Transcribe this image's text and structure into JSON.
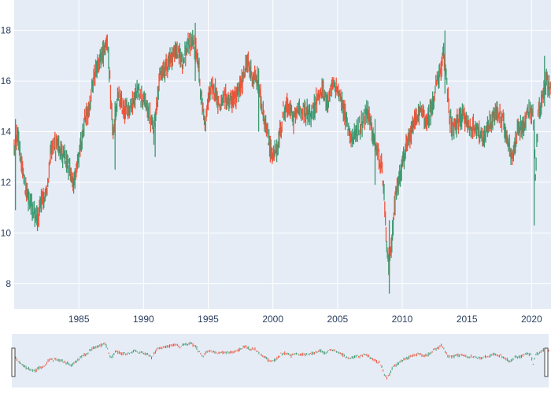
{
  "colors": {
    "background": "#ffffff",
    "plot_background": "#e5ecf6",
    "grid": "#ffffff",
    "axis_text": "#2a3f5f",
    "increasing": "#3d9970",
    "decreasing": "#ef553b",
    "slider_border": "#444444"
  },
  "chart_data": {
    "type": "candlestick",
    "xlabel": "",
    "ylabel": "",
    "x_ticks": [
      "1985",
      "1990",
      "1995",
      "2000",
      "2005",
      "2010",
      "2015",
      "2020"
    ],
    "y_ticks": [
      "8",
      "10",
      "12",
      "14",
      "16",
      "18"
    ],
    "xlim": [
      1980.0,
      2021.5
    ],
    "ylim": [
      7.0,
      19.2
    ],
    "grid": true,
    "legend": "none",
    "range_slider": true,
    "price_path": [
      {
        "x": 1980.0,
        "y": 13.3
      },
      {
        "x": 1980.3,
        "y": 14.0
      },
      {
        "x": 1980.6,
        "y": 12.5
      },
      {
        "x": 1981.0,
        "y": 11.5
      },
      {
        "x": 1981.4,
        "y": 11.0
      },
      {
        "x": 1981.8,
        "y": 10.5
      },
      {
        "x": 1982.1,
        "y": 11.2
      },
      {
        "x": 1982.5,
        "y": 11.5
      },
      {
        "x": 1982.8,
        "y": 13.2
      },
      {
        "x": 1983.3,
        "y": 13.5
      },
      {
        "x": 1983.8,
        "y": 13.0
      },
      {
        "x": 1984.3,
        "y": 12.5
      },
      {
        "x": 1984.6,
        "y": 11.9
      },
      {
        "x": 1985.0,
        "y": 13.0
      },
      {
        "x": 1985.4,
        "y": 14.2
      },
      {
        "x": 1985.8,
        "y": 15.0
      },
      {
        "x": 1986.2,
        "y": 16.2
      },
      {
        "x": 1986.6,
        "y": 16.8
      },
      {
        "x": 1987.0,
        "y": 17.3
      },
      {
        "x": 1987.2,
        "y": 17.7
      },
      {
        "x": 1987.5,
        "y": 14.9
      },
      {
        "x": 1987.7,
        "y": 13.8
      },
      {
        "x": 1988.0,
        "y": 15.4
      },
      {
        "x": 1988.5,
        "y": 14.8
      },
      {
        "x": 1989.0,
        "y": 15.0
      },
      {
        "x": 1989.5,
        "y": 15.6
      },
      {
        "x": 1990.0,
        "y": 15.3
      },
      {
        "x": 1990.5,
        "y": 14.6
      },
      {
        "x": 1990.8,
        "y": 14.0
      },
      {
        "x": 1991.2,
        "y": 16.0
      },
      {
        "x": 1991.7,
        "y": 16.6
      },
      {
        "x": 1992.2,
        "y": 17.0
      },
      {
        "x": 1992.6,
        "y": 17.2
      },
      {
        "x": 1993.0,
        "y": 16.8
      },
      {
        "x": 1993.4,
        "y": 17.3
      },
      {
        "x": 1993.8,
        "y": 17.6
      },
      {
        "x": 1994.2,
        "y": 16.9
      },
      {
        "x": 1994.5,
        "y": 15.2
      },
      {
        "x": 1994.8,
        "y": 14.3
      },
      {
        "x": 1995.1,
        "y": 15.6
      },
      {
        "x": 1995.5,
        "y": 15.7
      },
      {
        "x": 1995.9,
        "y": 15.0
      },
      {
        "x": 1996.3,
        "y": 15.3
      },
      {
        "x": 1996.8,
        "y": 15.2
      },
      {
        "x": 1997.2,
        "y": 15.4
      },
      {
        "x": 1997.6,
        "y": 15.9
      },
      {
        "x": 1998.0,
        "y": 16.8
      },
      {
        "x": 1998.4,
        "y": 16.2
      },
      {
        "x": 1998.8,
        "y": 16.0
      },
      {
        "x": 1999.2,
        "y": 14.9
      },
      {
        "x": 1999.6,
        "y": 13.8
      },
      {
        "x": 2000.0,
        "y": 13.0
      },
      {
        "x": 2000.4,
        "y": 13.4
      },
      {
        "x": 2000.8,
        "y": 14.8
      },
      {
        "x": 2001.2,
        "y": 15.0
      },
      {
        "x": 2001.6,
        "y": 14.5
      },
      {
        "x": 2002.0,
        "y": 14.9
      },
      {
        "x": 2002.5,
        "y": 14.8
      },
      {
        "x": 2003.0,
        "y": 14.6
      },
      {
        "x": 2003.4,
        "y": 15.3
      },
      {
        "x": 2003.8,
        "y": 15.6
      },
      {
        "x": 2004.2,
        "y": 15.2
      },
      {
        "x": 2004.6,
        "y": 15.8
      },
      {
        "x": 2005.0,
        "y": 15.7
      },
      {
        "x": 2005.4,
        "y": 15.0
      },
      {
        "x": 2005.8,
        "y": 14.2
      },
      {
        "x": 2006.2,
        "y": 13.7
      },
      {
        "x": 2006.6,
        "y": 14.1
      },
      {
        "x": 2007.0,
        "y": 14.5
      },
      {
        "x": 2007.4,
        "y": 14.8
      },
      {
        "x": 2007.8,
        "y": 13.6
      },
      {
        "x": 2008.1,
        "y": 13.2
      },
      {
        "x": 2008.4,
        "y": 12.6
      },
      {
        "x": 2008.6,
        "y": 11.5
      },
      {
        "x": 2008.8,
        "y": 9.3
      },
      {
        "x": 2009.0,
        "y": 8.7
      },
      {
        "x": 2009.2,
        "y": 9.8
      },
      {
        "x": 2009.5,
        "y": 11.5
      },
      {
        "x": 2009.9,
        "y": 12.5
      },
      {
        "x": 2010.3,
        "y": 13.3
      },
      {
        "x": 2010.7,
        "y": 13.9
      },
      {
        "x": 2011.1,
        "y": 14.6
      },
      {
        "x": 2011.5,
        "y": 14.8
      },
      {
        "x": 2011.9,
        "y": 14.3
      },
      {
        "x": 2012.3,
        "y": 15.0
      },
      {
        "x": 2012.7,
        "y": 16.0
      },
      {
        "x": 2013.0,
        "y": 16.4
      },
      {
        "x": 2013.2,
        "y": 17.0
      },
      {
        "x": 2013.4,
        "y": 16.4
      },
      {
        "x": 2013.7,
        "y": 14.4
      },
      {
        "x": 2014.0,
        "y": 14.0
      },
      {
        "x": 2014.4,
        "y": 14.5
      },
      {
        "x": 2014.8,
        "y": 14.6
      },
      {
        "x": 2015.3,
        "y": 14.1
      },
      {
        "x": 2015.8,
        "y": 14.2
      },
      {
        "x": 2016.2,
        "y": 13.6
      },
      {
        "x": 2016.6,
        "y": 14.1
      },
      {
        "x": 2017.0,
        "y": 14.5
      },
      {
        "x": 2017.4,
        "y": 14.8
      },
      {
        "x": 2017.8,
        "y": 14.4
      },
      {
        "x": 2018.2,
        "y": 13.5
      },
      {
        "x": 2018.6,
        "y": 13.0
      },
      {
        "x": 2018.9,
        "y": 14.0
      },
      {
        "x": 2019.3,
        "y": 14.2
      },
      {
        "x": 2019.7,
        "y": 14.8
      },
      {
        "x": 2020.1,
        "y": 14.9
      },
      {
        "x": 2020.3,
        "y": 12.2
      },
      {
        "x": 2020.5,
        "y": 14.6
      },
      {
        "x": 2020.8,
        "y": 15.2
      },
      {
        "x": 2021.1,
        "y": 16.0
      },
      {
        "x": 2021.5,
        "y": 15.8
      }
    ],
    "spikes": [
      {
        "x": 1980.1,
        "low": 10.9,
        "high": 14.5
      },
      {
        "x": 1987.8,
        "low": 12.5,
        "high": 15.2
      },
      {
        "x": 1990.9,
        "low": 13.0,
        "high": 14.8
      },
      {
        "x": 1994.0,
        "low": 16.0,
        "high": 18.3
      },
      {
        "x": 1998.9,
        "low": 14.0,
        "high": 16.5
      },
      {
        "x": 2007.9,
        "low": 11.9,
        "high": 14.5
      },
      {
        "x": 2009.0,
        "low": 7.6,
        "high": 10.5
      },
      {
        "x": 2013.3,
        "low": 15.5,
        "high": 18.0
      },
      {
        "x": 2020.2,
        "low": 10.3,
        "high": 14.5
      },
      {
        "x": 2021.0,
        "low": 15.0,
        "high": 17.0
      }
    ]
  }
}
